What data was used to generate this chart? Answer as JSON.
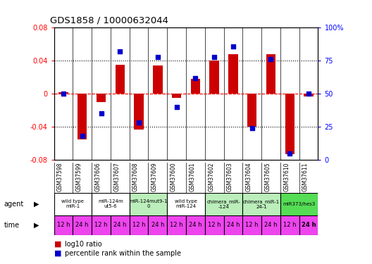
{
  "title": "GDS1858 / 10000632044",
  "samples": [
    "GSM37598",
    "GSM37599",
    "GSM37606",
    "GSM37607",
    "GSM37608",
    "GSM37609",
    "GSM37600",
    "GSM37601",
    "GSM37602",
    "GSM37603",
    "GSM37604",
    "GSM37605",
    "GSM37610",
    "GSM37611"
  ],
  "log10_ratio": [
    0.002,
    -0.055,
    -0.01,
    0.035,
    -0.043,
    0.034,
    -0.005,
    0.018,
    0.04,
    0.048,
    -0.04,
    0.048,
    -0.073,
    -0.003
  ],
  "percentile_rank": [
    50,
    18,
    35,
    82,
    28,
    78,
    40,
    62,
    78,
    86,
    24,
    76,
    5,
    50
  ],
  "agents": [
    {
      "label": "wild type\nmiR-1",
      "cols": [
        0,
        1
      ],
      "color": "#ffffff"
    },
    {
      "label": "miR-124m\nut5-6",
      "cols": [
        2,
        3
      ],
      "color": "#ffffff"
    },
    {
      "label": "miR-124mut9-1\n0",
      "cols": [
        4,
        5
      ],
      "color": "#bbeebb"
    },
    {
      "label": "wild type\nmiR-124",
      "cols": [
        6,
        7
      ],
      "color": "#ffffff"
    },
    {
      "label": "chimera_miR-\n-124",
      "cols": [
        8,
        9
      ],
      "color": "#bbeebb"
    },
    {
      "label": "chimera_miR-1\n24-1",
      "cols": [
        10,
        11
      ],
      "color": "#bbeebb"
    },
    {
      "label": "miR373/hes3",
      "cols": [
        12,
        13
      ],
      "color": "#55dd55"
    }
  ],
  "time_labels": [
    "12 h",
    "24 h",
    "12 h",
    "24 h",
    "12 h",
    "24 h",
    "12 h",
    "24 h",
    "12 h",
    "24 h",
    "12 h",
    "24 h",
    "12 h",
    "24 h"
  ],
  "ylim": [
    -0.08,
    0.08
  ],
  "y2lim": [
    0,
    100
  ],
  "yticks": [
    -0.08,
    -0.04,
    0,
    0.04,
    0.08
  ],
  "y2ticks": [
    0,
    25,
    50,
    75,
    100
  ],
  "bar_color": "#cc0000",
  "dot_color": "#0000cc",
  "bg_color": "#ffffff",
  "time_bg": "#ee44ee"
}
